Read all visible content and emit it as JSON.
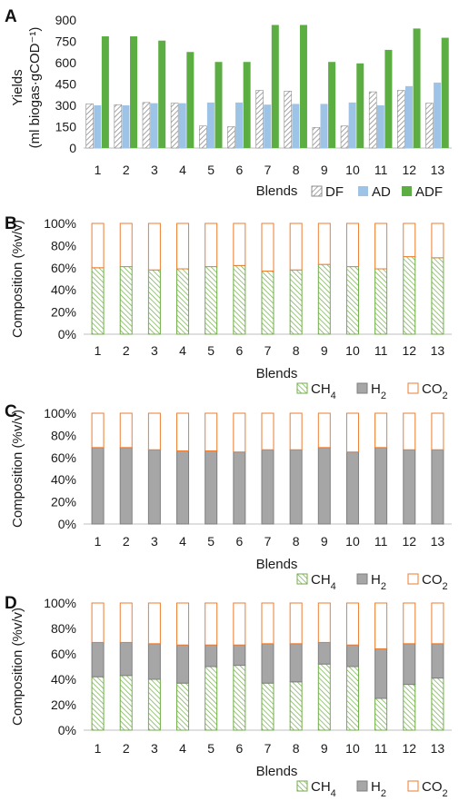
{
  "colors": {
    "DF": "#8c8c8c",
    "AD": "#9dc3e6",
    "ADF": "#5cae42",
    "CH4": "#70ad47",
    "H2": "#a6a6a6",
    "H2_stroke": "#7f7f7f",
    "CO2": "#ed7d31",
    "axis": "#bfbfbf"
  },
  "chart_data": [
    {
      "panel": "A",
      "type": "bar",
      "xlabel": "Blends",
      "ylabel_lines": [
        "Yields",
        "(ml biogas·gCOD⁻¹)"
      ],
      "categories": [
        "1",
        "2",
        "3",
        "4",
        "5",
        "6",
        "7",
        "8",
        "9",
        "10",
        "11",
        "12",
        "13"
      ],
      "ylim": [
        0,
        900
      ],
      "yticks": [
        "0",
        "150",
        "300",
        "450",
        "600",
        "750",
        "900"
      ],
      "legend_position": "bottom-right",
      "series": [
        {
          "name": "DF",
          "values": [
            310,
            305,
            320,
            315,
            155,
            150,
            405,
            400,
            145,
            155,
            395,
            405,
            315
          ]
        },
        {
          "name": "AD",
          "values": [
            300,
            300,
            315,
            315,
            320,
            320,
            305,
            310,
            310,
            320,
            300,
            435,
            460
          ]
        },
        {
          "name": "ADF",
          "values": [
            785,
            785,
            755,
            675,
            605,
            605,
            865,
            865,
            605,
            595,
            690,
            840,
            775
          ]
        }
      ]
    },
    {
      "panel": "B",
      "type": "bar",
      "stacked": true,
      "xlabel": "Blends",
      "ylabel": "Composition (%v/v)",
      "categories": [
        "1",
        "2",
        "3",
        "4",
        "5",
        "6",
        "7",
        "8",
        "9",
        "10",
        "11",
        "12",
        "13"
      ],
      "ylim": [
        0,
        100
      ],
      "yticks": [
        "0%",
        "20%",
        "40%",
        "60%",
        "80%",
        "100%"
      ],
      "legend_position": "bottom-right",
      "series": [
        {
          "name": "CH4",
          "values": [
            60,
            61,
            58,
            59,
            61,
            62,
            57,
            58,
            63,
            61,
            59,
            70,
            69
          ]
        },
        {
          "name": "H2",
          "values": [
            0,
            0,
            0,
            0,
            0,
            0,
            0,
            0,
            0,
            0,
            0,
            0,
            0
          ]
        },
        {
          "name": "CO2",
          "values": [
            40,
            39,
            42,
            41,
            39,
            38,
            43,
            42,
            37,
            39,
            41,
            30,
            31
          ]
        }
      ]
    },
    {
      "panel": "C",
      "type": "bar",
      "stacked": true,
      "xlabel": "Blends",
      "ylabel": "Composition (%v/v)",
      "categories": [
        "1",
        "2",
        "3",
        "4",
        "5",
        "6",
        "7",
        "8",
        "9",
        "10",
        "11",
        "12",
        "13"
      ],
      "ylim": [
        0,
        100
      ],
      "yticks": [
        "0%",
        "20%",
        "40%",
        "60%",
        "80%",
        "100%"
      ],
      "legend_position": "bottom-right",
      "series": [
        {
          "name": "CH4",
          "values": [
            0,
            0,
            0,
            0,
            0,
            0,
            0,
            0,
            0,
            0,
            0,
            0,
            0
          ]
        },
        {
          "name": "H2",
          "values": [
            69,
            69,
            67,
            66,
            66,
            65,
            67,
            67,
            69,
            65,
            69,
            67,
            67
          ]
        },
        {
          "name": "CO2",
          "values": [
            31,
            31,
            33,
            34,
            34,
            35,
            33,
            33,
            31,
            35,
            31,
            33,
            33
          ]
        }
      ]
    },
    {
      "panel": "D",
      "type": "bar",
      "stacked": true,
      "xlabel": "Blends",
      "ylabel": "Composition (%v/v)",
      "categories": [
        "1",
        "2",
        "3",
        "4",
        "5",
        "6",
        "7",
        "8",
        "9",
        "10",
        "11",
        "12",
        "13"
      ],
      "ylim": [
        0,
        100
      ],
      "yticks": [
        "0%",
        "20%",
        "40%",
        "60%",
        "80%",
        "100%"
      ],
      "legend_position": "bottom-right",
      "series": [
        {
          "name": "CH4",
          "values": [
            42,
            43,
            40,
            37,
            50,
            51,
            37,
            38,
            52,
            50,
            25,
            36,
            41
          ]
        },
        {
          "name": "H2",
          "values": [
            27,
            26,
            28,
            30,
            17,
            16,
            31,
            30,
            17,
            17,
            39,
            32,
            27
          ]
        },
        {
          "name": "CO2",
          "values": [
            31,
            31,
            32,
            33,
            33,
            33,
            32,
            32,
            31,
            33,
            36,
            32,
            32
          ]
        }
      ]
    }
  ]
}
